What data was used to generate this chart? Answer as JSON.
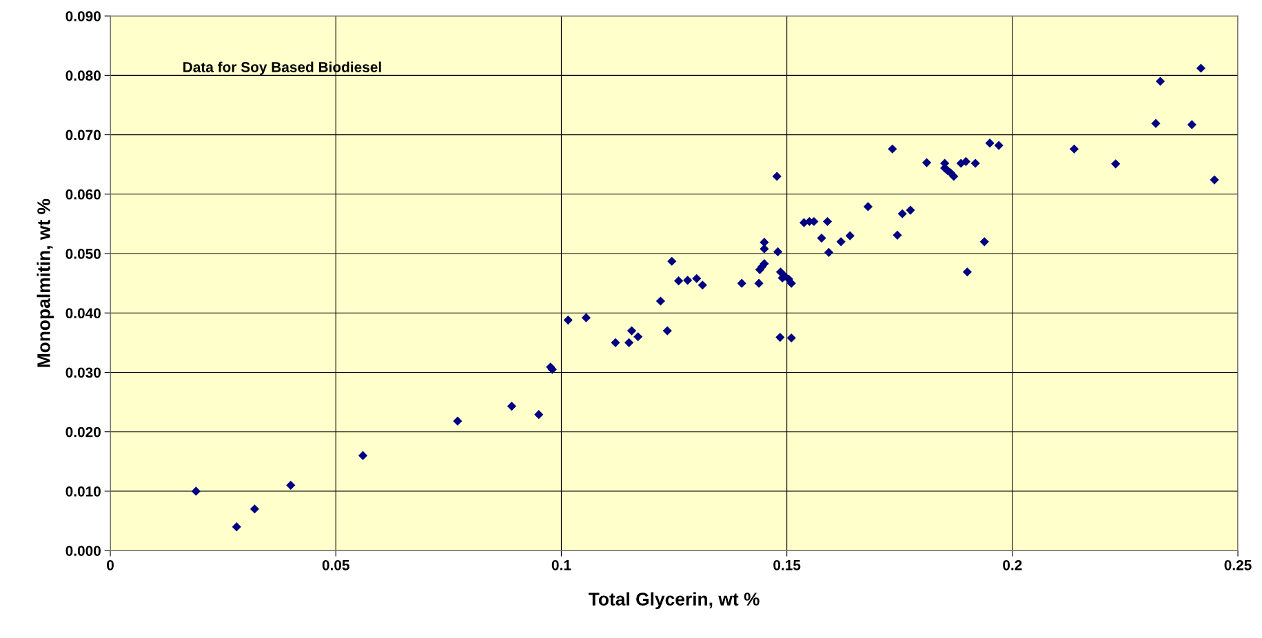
{
  "chart_data": {
    "type": "scatter",
    "xlabel": "Total Glycerin, wt %",
    "ylabel": "Monopalmitin, wt %",
    "annotations": [
      "Data for Soy Based Biodiesel"
    ],
    "xlim": [
      0,
      0.25
    ],
    "xticks": [
      0,
      0.05,
      0.1,
      0.15,
      0.2,
      0.25
    ],
    "ylim": [
      0,
      0.09
    ],
    "yticks": [
      {
        "value": 0,
        "label": "0.000"
      },
      {
        "value": 0.01,
        "label": "0.010"
      },
      {
        "value": 0.02,
        "label": "0.020"
      },
      {
        "value": 0.03,
        "label": "0.030"
      },
      {
        "value": 0.04,
        "label": "0.040"
      },
      {
        "value": 0.05,
        "label": "0.050"
      },
      {
        "value": 0.06,
        "label": "0.060"
      },
      {
        "value": 0.07,
        "label": "0.070"
      },
      {
        "value": 0.08,
        "label": "0.080"
      },
      {
        "value": 0.09,
        "label": "0.090"
      }
    ],
    "grid": true,
    "marker": "diamond",
    "legend": false,
    "series": [
      {
        "color": "#000080",
        "x": [
          0.019,
          0.028,
          0.032,
          0.04,
          0.056,
          0.077,
          0.089,
          0.095,
          0.0976,
          0.098,
          0.1015,
          0.1055,
          0.112,
          0.115,
          0.1156,
          0.117,
          0.122,
          0.1235,
          0.1245,
          0.126,
          0.128,
          0.13,
          0.1313,
          0.14,
          0.1438,
          0.144,
          0.1445,
          0.145,
          0.145,
          0.145,
          0.1478,
          0.148,
          0.1486,
          0.1485,
          0.149,
          0.1495,
          0.1504,
          0.151,
          0.151,
          0.1538,
          0.155,
          0.156,
          0.1577,
          0.159,
          0.1593,
          0.162,
          0.164,
          0.168,
          0.1734,
          0.1745,
          0.1756,
          0.1774,
          0.181,
          0.185,
          0.185,
          0.1856,
          0.1863,
          0.187,
          0.1886,
          0.1897,
          0.19,
          0.1918,
          0.1938,
          0.195,
          0.197,
          0.2137,
          0.2229,
          0.2318,
          0.2328,
          0.2398,
          0.2418,
          0.2448
        ],
        "values": [
          0.01,
          0.004,
          0.007,
          0.011,
          0.016,
          0.0218,
          0.0243,
          0.0229,
          0.0309,
          0.0305,
          0.0388,
          0.0392,
          0.035,
          0.035,
          0.037,
          0.036,
          0.042,
          0.037,
          0.0487,
          0.0454,
          0.0455,
          0.0458,
          0.0447,
          0.045,
          0.045,
          0.0473,
          0.0478,
          0.0483,
          0.0519,
          0.0508,
          0.063,
          0.0503,
          0.0469,
          0.0359,
          0.0459,
          0.0462,
          0.0457,
          0.045,
          0.0358,
          0.0552,
          0.0554,
          0.0554,
          0.0526,
          0.0554,
          0.0502,
          0.052,
          0.053,
          0.0579,
          0.0676,
          0.0531,
          0.0567,
          0.0573,
          0.0653,
          0.0652,
          0.0644,
          0.064,
          0.0636,
          0.063,
          0.0652,
          0.0655,
          0.0469,
          0.0652,
          0.052,
          0.0686,
          0.0682,
          0.0676,
          0.0651,
          0.0719,
          0.079,
          0.0717,
          0.0812,
          0.0624
        ]
      }
    ]
  }
}
